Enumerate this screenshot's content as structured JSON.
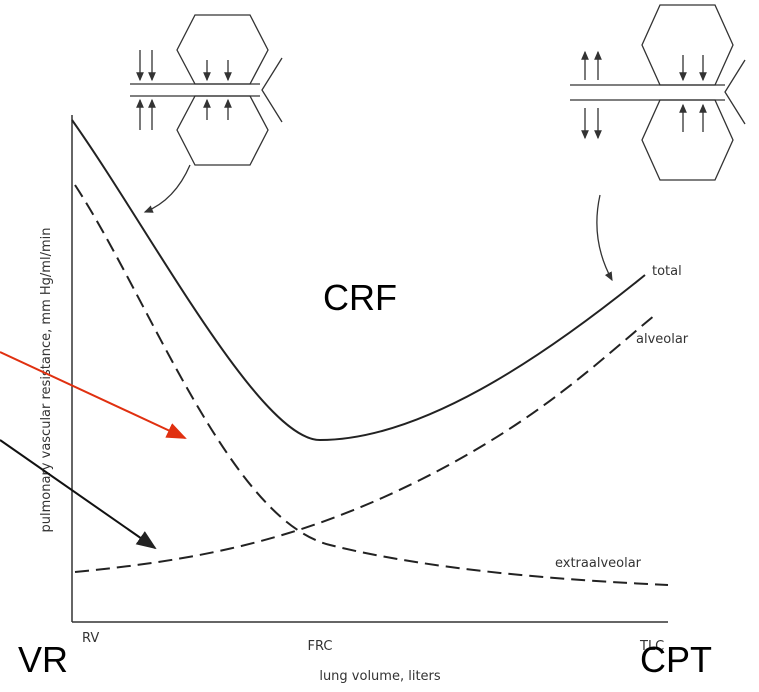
{
  "axes": {
    "y_label": "pulmonary vascular resistance, mm Hg/ml/min",
    "x_label": "lung volume, liters",
    "x_ticks": [
      "RV",
      "FRC",
      "TLC"
    ]
  },
  "curves": {
    "total": "total",
    "alveolar": "alveolar",
    "extraalveolar": "extraalveolar"
  },
  "overlay": {
    "left": "VR",
    "right": "CPT",
    "middle": "CRF"
  }
}
